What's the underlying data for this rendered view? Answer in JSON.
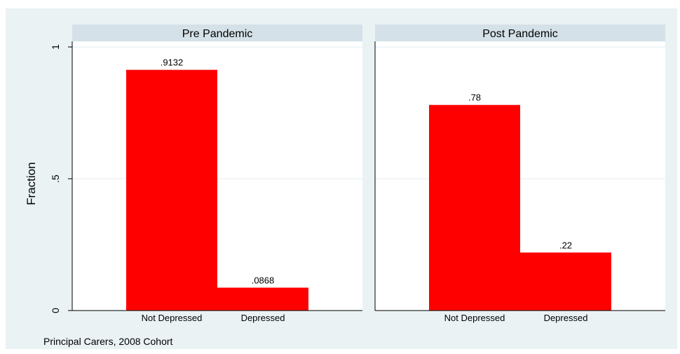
{
  "chart_data": {
    "type": "bar",
    "ylabel": "Fraction",
    "ylim": [
      0,
      1
    ],
    "yticks": [
      {
        "value": 0,
        "label": "0"
      },
      {
        "value": 0.5,
        "label": ".5"
      },
      {
        "value": 1,
        "label": "1"
      }
    ],
    "categories": [
      "Not Depressed",
      "Depressed"
    ],
    "panels": [
      {
        "title": "Pre Pandemic",
        "values": [
          0.9132,
          0.0868
        ],
        "value_labels": [
          ".9132",
          ".0868"
        ]
      },
      {
        "title": "Post Pandemic",
        "values": [
          0.78,
          0.22
        ],
        "value_labels": [
          ".78",
          ".22"
        ]
      }
    ],
    "note": "Principal Carers, 2008 Cohort",
    "bar_color": "#ff0000",
    "grid": true
  }
}
